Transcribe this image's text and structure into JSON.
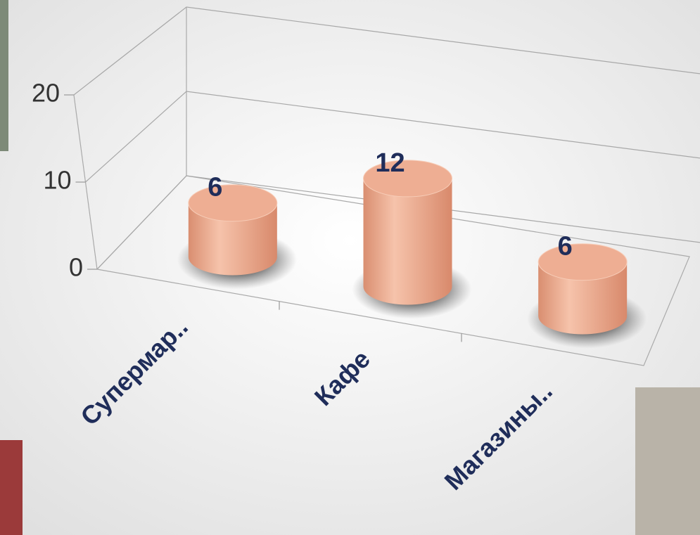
{
  "chart_data": {
    "type": "bar3d-cylinder",
    "categories": [
      "Супермар..",
      "Кафе",
      "Магазины.."
    ],
    "values": [
      6,
      12,
      6
    ],
    "color": "#e9a488",
    "ylim": [
      0,
      20
    ],
    "yticks": [
      0,
      10,
      20
    ],
    "grid": true
  }
}
